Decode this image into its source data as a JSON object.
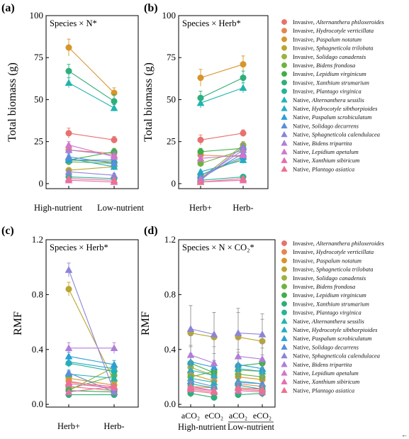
{
  "corner_mark": "←",
  "species": [
    {
      "origin": "Invasive",
      "name": "Alternanthera philoxeroides",
      "color": "#E8716E",
      "marker": "circle"
    },
    {
      "origin": "Invasive",
      "name": "Hydrocotyle verticillata",
      "color": "#E6864E",
      "marker": "circle"
    },
    {
      "origin": "Invasive",
      "name": "Paspalum notatum",
      "color": "#D7952A",
      "marker": "circle"
    },
    {
      "origin": "Invasive",
      "name": "Sphagneticola trilobata",
      "color": "#B9A62F",
      "marker": "circle"
    },
    {
      "origin": "Invasive",
      "name": "Solidago canadensis",
      "color": "#9BB23E",
      "marker": "circle"
    },
    {
      "origin": "Invasive",
      "name": "Bidens frondosa",
      "color": "#6FB240",
      "marker": "circle"
    },
    {
      "origin": "Invasive",
      "name": "Lepidium virginicum",
      "color": "#3FAE49",
      "marker": "circle"
    },
    {
      "origin": "Invasive",
      "name": "Xanthium strumarium",
      "color": "#2EAF7A",
      "marker": "circle"
    },
    {
      "origin": "Invasive",
      "name": "Plantago virginica",
      "color": "#27B398",
      "marker": "circle"
    },
    {
      "origin": "Native",
      "name": "Alternanthera sessilis",
      "color": "#21B5AE",
      "marker": "triangle"
    },
    {
      "origin": "Native",
      "name": "Hydrocotyle sibthorpioides",
      "color": "#24ADC5",
      "marker": "triangle"
    },
    {
      "origin": "Native",
      "name": "Paspalum scrobiculatum",
      "color": "#2A9FD6",
      "marker": "triangle"
    },
    {
      "origin": "Native",
      "name": "Solidago decurrens",
      "color": "#5B8ED8",
      "marker": "triangle"
    },
    {
      "origin": "Native",
      "name": "Sphagneticola calendulacea",
      "color": "#8C84D6",
      "marker": "triangle"
    },
    {
      "origin": "Native",
      "name": "Bidens tripartita",
      "color": "#B07ED8",
      "marker": "triangle"
    },
    {
      "origin": "Native",
      "name": "Lepidium apetalum",
      "color": "#D375CB",
      "marker": "triangle"
    },
    {
      "origin": "Native",
      "name": "Xanthium sibiricum",
      "color": "#E46FAF",
      "marker": "triangle"
    },
    {
      "origin": "Native",
      "name": "Plantago asiatica",
      "color": "#EC7190",
      "marker": "triangle"
    }
  ],
  "chart_data": [
    {
      "panel": "(a)",
      "type": "line",
      "annotation": "Species × N*",
      "ylabel": "Total biomass (g)",
      "xlabel": "",
      "categories": [
        "High-nutrient",
        "Low-nutrient"
      ],
      "ylim": [
        -3,
        100
      ],
      "yticks": [
        0,
        25,
        50,
        75,
        100
      ],
      "values": [
        [
          30,
          26
        ],
        [
          20,
          18
        ],
        [
          81,
          54
        ],
        [
          8,
          10
        ],
        [
          14,
          13
        ],
        [
          13,
          12
        ],
        [
          14,
          19
        ],
        [
          67,
          49
        ],
        [
          4,
          3
        ],
        [
          60,
          45
        ],
        [
          15,
          10
        ],
        [
          14,
          14
        ],
        [
          16,
          12
        ],
        [
          7,
          5
        ],
        [
          20,
          17
        ],
        [
          23,
          16
        ],
        [
          2,
          1
        ],
        [
          3,
          2
        ]
      ],
      "err": [
        [
          3,
          2
        ],
        [
          2,
          2
        ],
        [
          5,
          3
        ],
        [
          1,
          1
        ],
        [
          2,
          2
        ],
        [
          2,
          2
        ],
        [
          2,
          2
        ],
        [
          4,
          4
        ],
        [
          1,
          1
        ],
        [
          3,
          2
        ],
        [
          2,
          1
        ],
        [
          2,
          2
        ],
        [
          2,
          2
        ],
        [
          1,
          1
        ],
        [
          2,
          2
        ],
        [
          2,
          2
        ],
        [
          1,
          1
        ],
        [
          1,
          1
        ]
      ]
    },
    {
      "panel": "(b)",
      "type": "line",
      "annotation": "Species × Herb*",
      "ylabel": "Total biomass (g)",
      "xlabel": "",
      "categories": [
        "Herb+",
        "Herb-"
      ],
      "ylim": [
        -3,
        100
      ],
      "yticks": [
        0,
        25,
        50,
        75,
        100
      ],
      "values": [
        [
          26,
          30
        ],
        [
          17,
          16
        ],
        [
          63,
          71
        ],
        [
          5,
          15
        ],
        [
          3,
          23
        ],
        [
          12,
          20
        ],
        [
          19,
          21
        ],
        [
          51,
          63
        ],
        [
          2,
          4
        ],
        [
          48,
          57
        ],
        [
          7,
          14
        ],
        [
          5,
          16
        ],
        [
          3,
          18
        ],
        [
          2,
          22
        ],
        [
          3,
          20
        ],
        [
          15,
          17
        ],
        [
          1,
          2
        ],
        [
          1,
          3
        ]
      ],
      "err": [
        [
          3,
          2
        ],
        [
          2,
          2
        ],
        [
          5,
          5
        ],
        [
          1,
          2
        ],
        [
          1,
          2
        ],
        [
          2,
          2
        ],
        [
          2,
          2
        ],
        [
          4,
          4
        ],
        [
          1,
          1
        ],
        [
          3,
          3
        ],
        [
          1,
          2
        ],
        [
          1,
          2
        ],
        [
          1,
          2
        ],
        [
          1,
          2
        ],
        [
          1,
          2
        ],
        [
          2,
          2
        ],
        [
          1,
          1
        ],
        [
          1,
          1
        ]
      ]
    },
    {
      "panel": "(c)",
      "type": "line",
      "annotation": "Species × Herb*",
      "ylabel": "RMF",
      "xlabel": "",
      "categories": [
        "Herb+",
        "Herb-"
      ],
      "ylim": [
        -0.02,
        1.2
      ],
      "yticks": [
        0.0,
        0.4,
        0.8,
        1.2
      ],
      "values": [
        [
          0.13,
          0.1
        ],
        [
          0.17,
          0.11
        ],
        [
          0.19,
          0.14
        ],
        [
          0.84,
          0.17
        ],
        [
          0.1,
          0.27
        ],
        [
          0.11,
          0.21
        ],
        [
          0.1,
          0.09
        ],
        [
          0.07,
          0.07
        ],
        [
          0.3,
          0.24
        ],
        [
          0.22,
          0.19
        ],
        [
          0.31,
          0.26
        ],
        [
          0.35,
          0.29
        ],
        [
          0.23,
          0.09
        ],
        [
          0.98,
          0.09
        ],
        [
          0.41,
          0.41
        ],
        [
          0.15,
          0.12
        ],
        [
          0.09,
          0.13
        ],
        [
          0.16,
          0.13
        ]
      ],
      "err": [
        [
          0.02,
          0.02
        ],
        [
          0.02,
          0.02
        ],
        [
          0.02,
          0.02
        ],
        [
          0.05,
          0.02
        ],
        [
          0.02,
          0.03
        ],
        [
          0.02,
          0.02
        ],
        [
          0.01,
          0.01
        ],
        [
          0.01,
          0.01
        ],
        [
          0.03,
          0.03
        ],
        [
          0.02,
          0.02
        ],
        [
          0.03,
          0.03
        ],
        [
          0.03,
          0.03
        ],
        [
          0.02,
          0.01
        ],
        [
          0.05,
          0.01
        ],
        [
          0.04,
          0.04
        ],
        [
          0.02,
          0.02
        ],
        [
          0.01,
          0.02
        ],
        [
          0.02,
          0.02
        ]
      ]
    },
    {
      "panel": "(d)",
      "type": "line",
      "annotation": "Species × N × CO₂*",
      "ylabel": "RMF",
      "xlabel": "",
      "categories": [
        "aCO₂",
        "eCO₂",
        "aCO₂",
        "eCO₂"
      ],
      "groups": [
        "High-nutrient",
        "Low-nutrient"
      ],
      "ylim": [
        -0.02,
        1.2
      ],
      "yticks": [
        0.0,
        0.4,
        0.8,
        1.2
      ],
      "values": [
        [
          0.1,
          0.08,
          0.11,
          0.1
        ],
        [
          0.13,
          0.12,
          0.15,
          0.13
        ],
        [
          0.22,
          0.17,
          0.2,
          0.18
        ],
        [
          0.52,
          0.49,
          0.49,
          0.46
        ],
        [
          0.27,
          0.21,
          0.25,
          0.24
        ],
        [
          0.2,
          0.24,
          0.22,
          0.2
        ],
        [
          0.3,
          0.23,
          0.28,
          0.3
        ],
        [
          0.08,
          0.05,
          0.07,
          0.08
        ],
        [
          0.15,
          0.12,
          0.14,
          0.11
        ],
        [
          0.19,
          0.16,
          0.17,
          0.15
        ],
        [
          0.25,
          0.21,
          0.26,
          0.24
        ],
        [
          0.31,
          0.27,
          0.29,
          0.26
        ],
        [
          0.17,
          0.13,
          0.16,
          0.15
        ],
        [
          0.55,
          0.51,
          0.52,
          0.51
        ],
        [
          0.36,
          0.3,
          0.35,
          0.33
        ],
        [
          0.13,
          0.1,
          0.12,
          0.11
        ],
        [
          0.11,
          0.09,
          0.1,
          0.09
        ],
        [
          0.12,
          0.1,
          0.12,
          0.11
        ]
      ],
      "err": [
        [
          0.03,
          0.03,
          0.03,
          0.03
        ],
        [
          0.04,
          0.03,
          0.04,
          0.03
        ],
        [
          0.08,
          0.06,
          0.07,
          0.06
        ],
        [
          0.2,
          0.18,
          0.18,
          0.16
        ],
        [
          0.1,
          0.09,
          0.09,
          0.08
        ],
        [
          0.07,
          0.08,
          0.07,
          0.07
        ],
        [
          0.12,
          0.09,
          0.1,
          0.11
        ],
        [
          0.03,
          0.02,
          0.02,
          0.03
        ],
        [
          0.05,
          0.04,
          0.05,
          0.04
        ],
        [
          0.06,
          0.05,
          0.06,
          0.05
        ],
        [
          0.1,
          0.08,
          0.09,
          0.09
        ],
        [
          0.12,
          0.1,
          0.11,
          0.1
        ],
        [
          0.06,
          0.05,
          0.05,
          0.05
        ],
        [
          0.17,
          0.16,
          0.18,
          0.15
        ],
        [
          0.14,
          0.12,
          0.13,
          0.12
        ],
        [
          0.04,
          0.03,
          0.04,
          0.03
        ],
        [
          0.03,
          0.02,
          0.03,
          0.02
        ],
        [
          0.04,
          0.03,
          0.04,
          0.03
        ]
      ]
    }
  ]
}
